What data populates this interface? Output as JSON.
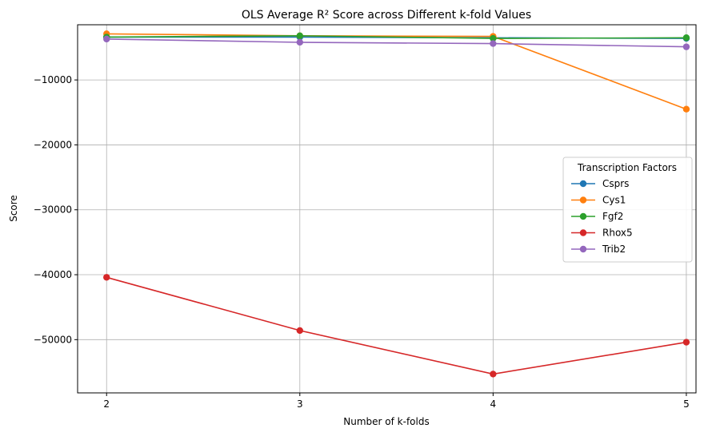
{
  "chart_data": {
    "type": "line",
    "title": "OLS Average R² Score across Different k-fold Values",
    "xlabel": "Number of k-folds",
    "ylabel": "Score",
    "x": [
      2,
      3,
      4,
      5
    ],
    "xlim": [
      1.85,
      5.05
    ],
    "ylim": [
      -58200,
      -1500
    ],
    "yticks": [
      -10000,
      -20000,
      -30000,
      -40000,
      -50000
    ],
    "ytick_labels": [
      "−10000",
      "−20000",
      "−30000",
      "−40000",
      "−50000"
    ],
    "xtick_labels": [
      "2",
      "3",
      "4",
      "5"
    ],
    "grid": true,
    "legend": {
      "title": "Transcription Factors",
      "placement": "center-right"
    },
    "series": [
      {
        "name": "Csprs",
        "color": "#1f77b4",
        "values": [
          -3400,
          -3400,
          -3500,
          -3600
        ]
      },
      {
        "name": "Cys1",
        "color": "#ff7f0e",
        "values": [
          -2900,
          -3200,
          -3300,
          -14500
        ]
      },
      {
        "name": "Fgf2",
        "color": "#2ca02c",
        "values": [
          -3400,
          -3200,
          -3600,
          -3500
        ]
      },
      {
        "name": "Rhox5",
        "color": "#d62728",
        "values": [
          -40400,
          -48600,
          -55300,
          -50400
        ]
      },
      {
        "name": "Trib2",
        "color": "#9467bd",
        "values": [
          -3700,
          -4200,
          -4400,
          -4900
        ]
      }
    ]
  }
}
